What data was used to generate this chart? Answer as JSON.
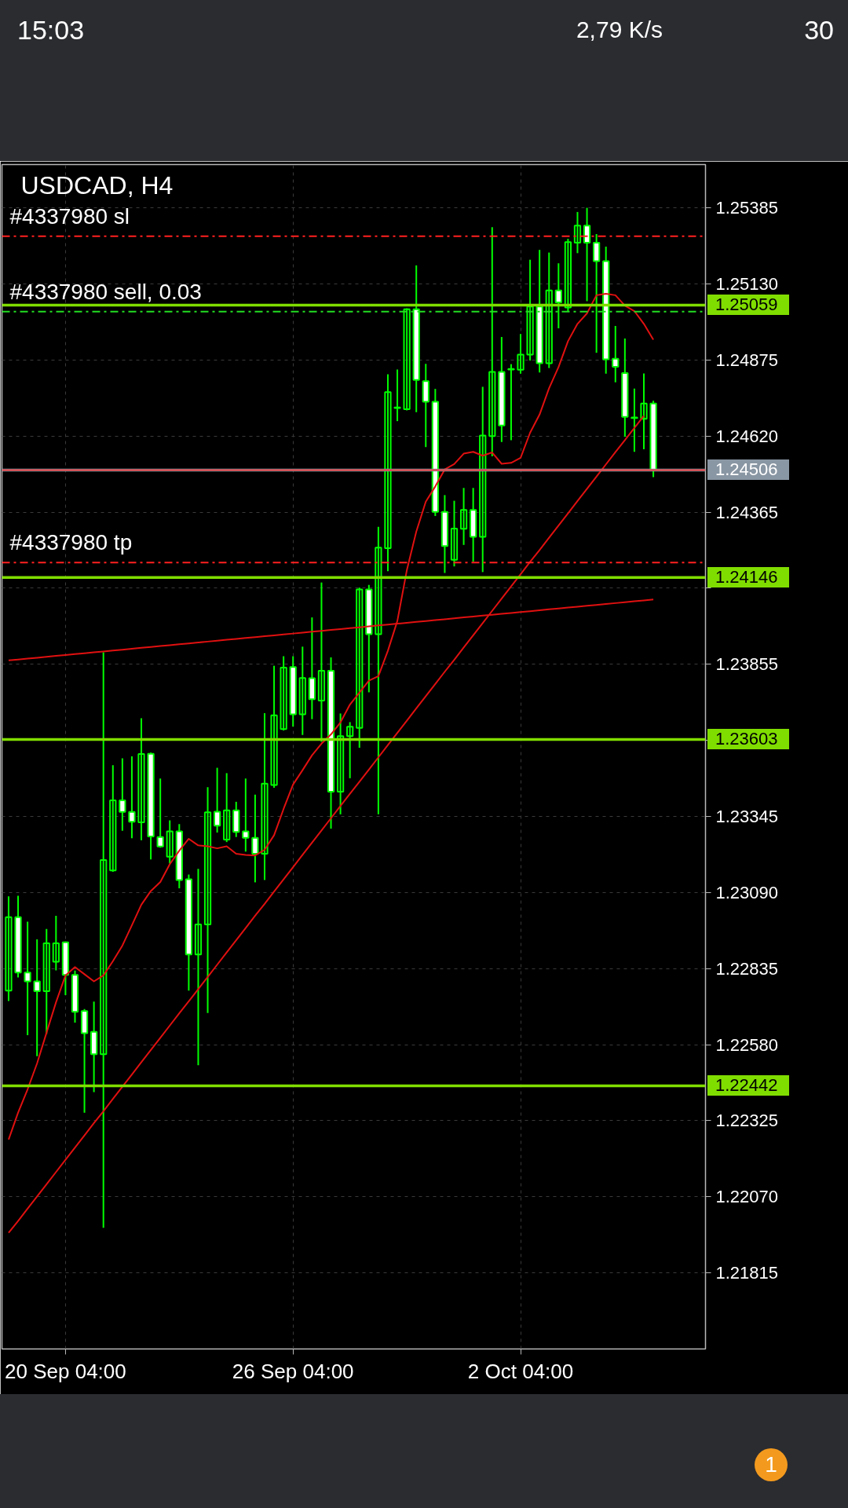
{
  "chart_data": {
    "type": "candlestick",
    "title": "USDCAD, H4",
    "color": "#00ff00",
    "categories": [
      null,
      null,
      null,
      null,
      null,
      null,
      "20 Sep 04:00",
      null,
      null,
      null,
      null,
      null,
      null,
      null,
      null,
      null,
      null,
      null,
      null,
      null,
      null,
      null,
      null,
      null,
      null,
      null,
      null,
      null,
      null,
      null,
      "26 Sep 04:00",
      null,
      null,
      null,
      null,
      null,
      null,
      null,
      null,
      null,
      null,
      null,
      null,
      null,
      null,
      null,
      null,
      null,
      null,
      null,
      null,
      null,
      null,
      null,
      "2 Oct 04:00",
      null,
      null,
      null,
      null,
      null,
      null,
      null,
      null,
      null,
      null,
      null,
      null,
      null,
      null
    ],
    "ohlc": [
      [
        1.22761,
        1.23077,
        1.22726,
        1.23007
      ],
      [
        1.23007,
        1.23079,
        1.22805,
        1.22822
      ],
      [
        1.22822,
        1.22992,
        1.22612,
        1.22792
      ],
      [
        1.22792,
        1.22933,
        1.22541,
        1.22759
      ],
      [
        1.22759,
        1.22968,
        1.22616,
        1.2292
      ],
      [
        1.22858,
        1.23012,
        1.22829,
        1.2292
      ],
      [
        1.22923,
        1.22926,
        1.22746,
        1.22814
      ],
      [
        1.22814,
        1.22828,
        1.22654,
        1.2269
      ],
      [
        1.22693,
        1.22699,
        1.22352,
        1.22618
      ],
      [
        1.22623,
        1.22724,
        1.22421,
        1.22548
      ],
      [
        1.22548,
        1.23895,
        1.21966,
        1.23199
      ],
      [
        1.23164,
        1.23517,
        1.23159,
        1.23399
      ],
      [
        1.23399,
        1.2354,
        1.23297,
        1.2336
      ],
      [
        1.2336,
        1.23546,
        1.23272,
        1.23327
      ],
      [
        1.23325,
        1.23674,
        1.23265,
        1.23554
      ],
      [
        1.23555,
        1.23559,
        1.23201,
        1.23278
      ],
      [
        1.23276,
        1.23472,
        1.2324,
        1.23244
      ],
      [
        1.2321,
        1.23332,
        1.23187,
        1.23295
      ],
      [
        1.23295,
        1.23319,
        1.23104,
        1.23132
      ],
      [
        1.23134,
        1.2315,
        1.22761,
        1.22882
      ],
      [
        1.22882,
        1.23169,
        1.22511,
        1.22983
      ],
      [
        1.22983,
        1.23443,
        1.22686,
        1.23359
      ],
      [
        1.23361,
        1.23508,
        1.23291,
        1.23314
      ],
      [
        1.23267,
        1.2349,
        1.23259,
        1.23365
      ],
      [
        1.23365,
        1.23394,
        1.23276,
        1.23293
      ],
      [
        1.23295,
        1.23472,
        1.23227,
        1.23273
      ],
      [
        1.23273,
        1.23418,
        1.23124,
        1.2322
      ],
      [
        1.2322,
        1.23691,
        1.23132,
        1.23455
      ],
      [
        1.2345,
        1.2385,
        1.23441,
        1.23684
      ],
      [
        1.23638,
        1.23882,
        1.23633,
        1.23844
      ],
      [
        1.23846,
        1.23882,
        1.23646,
        1.23687
      ],
      [
        1.23687,
        1.23914,
        1.23618,
        1.23809
      ],
      [
        1.23808,
        1.24012,
        1.23671,
        1.23738
      ],
      [
        1.23733,
        1.24129,
        1.23595,
        1.23833
      ],
      [
        1.23833,
        1.23878,
        1.23304,
        1.23428
      ],
      [
        1.23428,
        1.2369,
        1.23352,
        1.23614
      ],
      [
        1.23614,
        1.23661,
        1.23473,
        1.23646
      ],
      [
        1.23642,
        1.24112,
        1.23575,
        1.24106
      ],
      [
        1.24106,
        1.24121,
        1.23761,
        1.23956
      ],
      [
        1.23956,
        1.24316,
        1.23352,
        1.24246
      ],
      [
        1.24244,
        1.24827,
        1.24167,
        1.24767
      ],
      [
        1.24716,
        1.24843,
        1.2467,
        1.24714
      ],
      [
        1.2471,
        1.25048,
        1.24706,
        1.25045
      ],
      [
        1.25045,
        1.25192,
        1.247,
        1.24808
      ],
      [
        1.24804,
        1.24862,
        1.24583,
        1.24735
      ],
      [
        1.24735,
        1.24778,
        1.24352,
        1.24366
      ],
      [
        1.24366,
        1.24422,
        1.24161,
        1.24251
      ],
      [
        1.24205,
        1.24403,
        1.24183,
        1.2431
      ],
      [
        1.24309,
        1.24446,
        1.24255,
        1.24372
      ],
      [
        1.24372,
        1.24446,
        1.24199,
        1.24282
      ],
      [
        1.24282,
        1.24785,
        1.24164,
        1.24622
      ],
      [
        1.2462,
        1.2532,
        1.24552,
        1.24835
      ],
      [
        1.24835,
        1.24952,
        1.246,
        1.24655
      ],
      [
        1.24845,
        1.24861,
        1.24606,
        1.24843
      ],
      [
        1.24842,
        1.24962,
        1.24829,
        1.24893
      ],
      [
        1.24893,
        1.25211,
        1.24873,
        1.25054
      ],
      [
        1.25054,
        1.25244,
        1.24833,
        1.24864
      ],
      [
        1.24864,
        1.25235,
        1.24848,
        1.25108
      ],
      [
        1.25108,
        1.25199,
        1.24981,
        1.25068
      ],
      [
        1.25051,
        1.25281,
        1.25037,
        1.2527
      ],
      [
        1.25268,
        1.25371,
        1.25233,
        1.25325
      ],
      [
        1.25325,
        1.25385,
        1.25072,
        1.25268
      ],
      [
        1.25268,
        1.25297,
        1.24899,
        1.25206
      ],
      [
        1.25206,
        1.25255,
        1.24829,
        1.24877
      ],
      [
        1.24879,
        1.24989,
        1.248,
        1.24852
      ],
      [
        1.24831,
        1.24947,
        1.24618,
        1.24684
      ],
      [
        1.24682,
        1.24779,
        1.24567,
        1.2468
      ],
      [
        1.24678,
        1.2483,
        1.24576,
        1.24729
      ],
      [
        1.24729,
        1.24738,
        1.24482,
        1.24506
      ]
    ],
    "series": [
      {
        "type": "line",
        "color": "#e01010",
        "values": [
          1.22262,
          1.22352,
          1.2243,
          1.22517,
          1.2262,
          1.22722,
          1.22812,
          1.2284,
          1.22816,
          1.22792,
          1.22812,
          1.2286,
          1.22912,
          1.2298,
          1.23049,
          1.23095,
          1.23125,
          1.23185,
          1.2323,
          1.2327,
          1.23248,
          1.23245,
          1.23238,
          1.23245,
          1.2322,
          1.23216,
          1.23214,
          1.23233,
          1.23282,
          1.2337,
          1.23452,
          1.235,
          1.2355,
          1.23589,
          1.2362,
          1.2366,
          1.2372,
          1.2376,
          1.238,
          1.23815,
          1.239,
          1.24,
          1.2417,
          1.243,
          1.244,
          1.24451,
          1.24508,
          1.24526,
          1.24561,
          1.24567,
          1.24554,
          1.24565,
          1.24527,
          1.2453,
          1.24547,
          1.24631,
          1.24692,
          1.2478,
          1.24851,
          1.24938,
          1.24996,
          1.25031,
          1.25092,
          1.25097,
          1.25092,
          1.25057,
          1.25039,
          1.24996,
          1.24943
        ]
      },
      {
        "type": "line",
        "color": "#e01010",
        "values": [
          1.23868,
          1.23871,
          1.23874,
          1.23877,
          1.2388,
          1.23883,
          1.23886,
          1.23889,
          1.23892,
          1.23895,
          1.23898,
          1.23901,
          1.23904,
          1.23907,
          1.2391,
          1.23913,
          1.23916,
          1.23919,
          1.23922,
          1.23925,
          1.23928,
          1.23931,
          1.23934,
          1.23937,
          1.2394,
          1.23943,
          1.23946,
          1.23949,
          1.23952,
          1.23955,
          1.23958,
          1.23961,
          1.23964,
          1.23967,
          1.2397,
          1.23973,
          1.23976,
          1.23979,
          1.23982,
          1.23985,
          1.23988,
          1.23991,
          1.23994,
          1.23997,
          1.24,
          1.24003,
          1.24006,
          1.24009,
          1.24012,
          1.24015,
          1.24018,
          1.24021,
          1.24024,
          1.24027,
          1.2403,
          1.24033,
          1.24036,
          1.24039,
          1.24042,
          1.24045,
          1.24048,
          1.24051,
          1.24054,
          1.24057,
          1.2406,
          1.24063,
          1.24066,
          1.24069,
          1.24072
        ]
      },
      {
        "type": "line",
        "color": "#e01010",
        "values": [
          1.21949,
          1.21989,
          1.2203,
          1.22071,
          1.22112,
          1.22153,
          1.22194,
          1.22235,
          1.22276,
          1.22317,
          1.22357,
          1.22398,
          1.22439,
          1.2248,
          1.22521,
          1.22562,
          1.22603,
          1.22644,
          1.22685,
          1.22725,
          1.22766,
          1.22807,
          1.22848,
          1.22889,
          1.2293,
          1.22971,
          1.23012,
          1.23052,
          1.23093,
          1.23134,
          1.23175,
          1.23216,
          1.23257,
          1.23298,
          1.23339,
          1.2338,
          1.23421,
          1.23461,
          1.23502,
          1.23543,
          1.23584,
          1.23625,
          1.23666,
          1.23707,
          1.23748,
          1.23789,
          1.2383,
          1.2387,
          1.23911,
          1.23952,
          1.23993,
          1.24034,
          1.24075,
          1.24116,
          1.24157,
          1.24198,
          1.24238,
          1.24279,
          1.2432,
          1.24361,
          1.24402,
          1.24443,
          1.24484,
          1.24525,
          1.24566,
          1.24606,
          1.24647,
          1.24688,
          null
        ]
      }
    ],
    "ylim": [
      1.2156,
      1.2553
    ],
    "yticks": [
      1.25385,
      {
        "value": 1.2513,
        "label": "1.25130"
      },
      1.24875,
      {
        "value": 1.2462,
        "label": "1.24620"
      },
      1.24365,
      {
        "value": 1.2411,
        "label": null
      },
      1.23855,
      {
        "value": 1.236,
        "label": null
      },
      1.23345,
      {
        "value": 1.2309,
        "label": "1.23090"
      },
      1.22835,
      {
        "value": 1.2258,
        "label": "1.22580"
      },
      1.22325,
      {
        "value": 1.2207,
        "label": "1.22070"
      },
      1.21815
    ],
    "ref_lines": [
      {
        "axis": "y",
        "value": 1.2529,
        "label": "#4337980 sl",
        "color": "#ff2020",
        "line_style": "dashdot"
      },
      {
        "axis": "y",
        "value": 1.25037,
        "label": "#4337980 sell, 0.03",
        "color": "#22dd22",
        "line_style": "dashdot"
      },
      {
        "axis": "y",
        "value": 1.24196,
        "label": "#4337980 tp",
        "color": "#ff2020",
        "line_style": "dashdot"
      },
      {
        "axis": "y",
        "value": 1.25059,
        "label": "1.25059",
        "color": "#80dd00",
        "line_style": "solid"
      },
      {
        "axis": "y",
        "value": 1.24506,
        "label": "1.24506",
        "color": "#8996a3",
        "line_style": "solid"
      },
      {
        "axis": "y",
        "value": 1.24506,
        "color": "#ff2a2a",
        "line_style": "solid"
      },
      {
        "axis": "y",
        "value": 1.24146,
        "label": "1.24146",
        "color": "#80dd00",
        "line_style": "solid"
      },
      {
        "axis": "y",
        "value": 1.23603,
        "label": "1.23603",
        "color": "#80dd00",
        "line_style": "solid"
      },
      {
        "axis": "y",
        "value": 1.22442,
        "label": "1.22442",
        "color": "#80dd00",
        "line_style": "solid"
      }
    ],
    "grid": true,
    "annotations": [
      "15:03",
      "2,79 K/s",
      "30",
      "1"
    ]
  }
}
